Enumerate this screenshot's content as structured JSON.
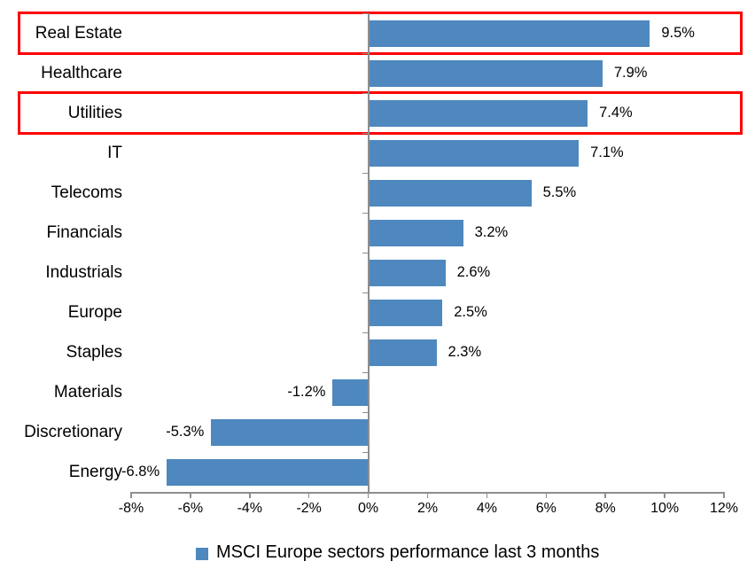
{
  "chart_data": {
    "type": "bar",
    "orientation": "horizontal",
    "title": "",
    "xlabel": "",
    "ylabel": "",
    "categories": [
      "Real Estate",
      "Healthcare",
      "Utilities",
      "IT",
      "Telecoms",
      "Financials",
      "Industrials",
      "Europe",
      "Staples",
      "Materials",
      "Discretionary",
      "Energy"
    ],
    "values": [
      9.5,
      7.9,
      7.4,
      7.1,
      5.5,
      3.2,
      2.6,
      2.5,
      2.3,
      -1.2,
      -5.3,
      -6.8
    ],
    "value_labels": [
      "9.5%",
      "7.9%",
      "7.4%",
      "7.1%",
      "5.5%",
      "3.2%",
      "2.6%",
      "2.5%",
      "2.3%",
      "-1.2%",
      "-5.3%",
      "-6.8%"
    ],
    "xlim": [
      -8,
      12
    ],
    "x_tick_values": [
      -8,
      -6,
      -4,
      -2,
      0,
      2,
      4,
      6,
      8,
      10,
      12
    ],
    "x_tick_labels": [
      "-8%",
      "-6%",
      "-4%",
      "-2%",
      "0%",
      "2%",
      "4%",
      "6%",
      "8%",
      "10%",
      "12%"
    ],
    "grid": false,
    "legend_position": "bottom-center",
    "legend": "MSCI Europe sectors performance last 3 months",
    "highlighted_categories": [
      "Real Estate",
      "Utilities"
    ],
    "colors": {
      "bar": "#4E88BE",
      "axis": "#8E8E8E",
      "text": "#000000",
      "highlight_border": "#FF0000",
      "background": "#FFFFFF"
    }
  }
}
